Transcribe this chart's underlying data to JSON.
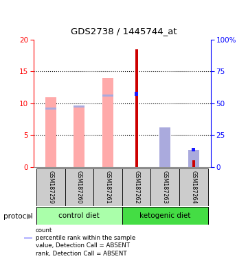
{
  "title": "GDS2738 / 1445744_at",
  "samples": [
    "GSM187259",
    "GSM187260",
    "GSM187261",
    "GSM187262",
    "GSM187263",
    "GSM187264"
  ],
  "count_values": [
    0,
    0,
    0,
    18.4,
    0,
    1.1
  ],
  "rank_values": [
    9.2,
    9.5,
    11.2,
    11.5,
    0,
    2.7
  ],
  "value_absent": [
    10.9,
    9.5,
    13.9,
    0,
    6.2,
    0
  ],
  "rank_absent": [
    0,
    0,
    0,
    0,
    6.2,
    2.7
  ],
  "count_color": "#cc0000",
  "rank_color": "#1a1aff",
  "value_absent_color": "#ffaaaa",
  "rank_absent_color": "#aaaadd",
  "ylim_left": [
    0,
    20
  ],
  "ylim_right": [
    0,
    100
  ],
  "yticks_left": [
    0,
    5,
    10,
    15,
    20
  ],
  "yticks_right": [
    0,
    25,
    50,
    75,
    100
  ],
  "ytick_labels_right": [
    "0",
    "25",
    "50",
    "75",
    "100%"
  ],
  "group_ctrl_color": "#aaffaa",
  "group_keto_color": "#44dd44"
}
